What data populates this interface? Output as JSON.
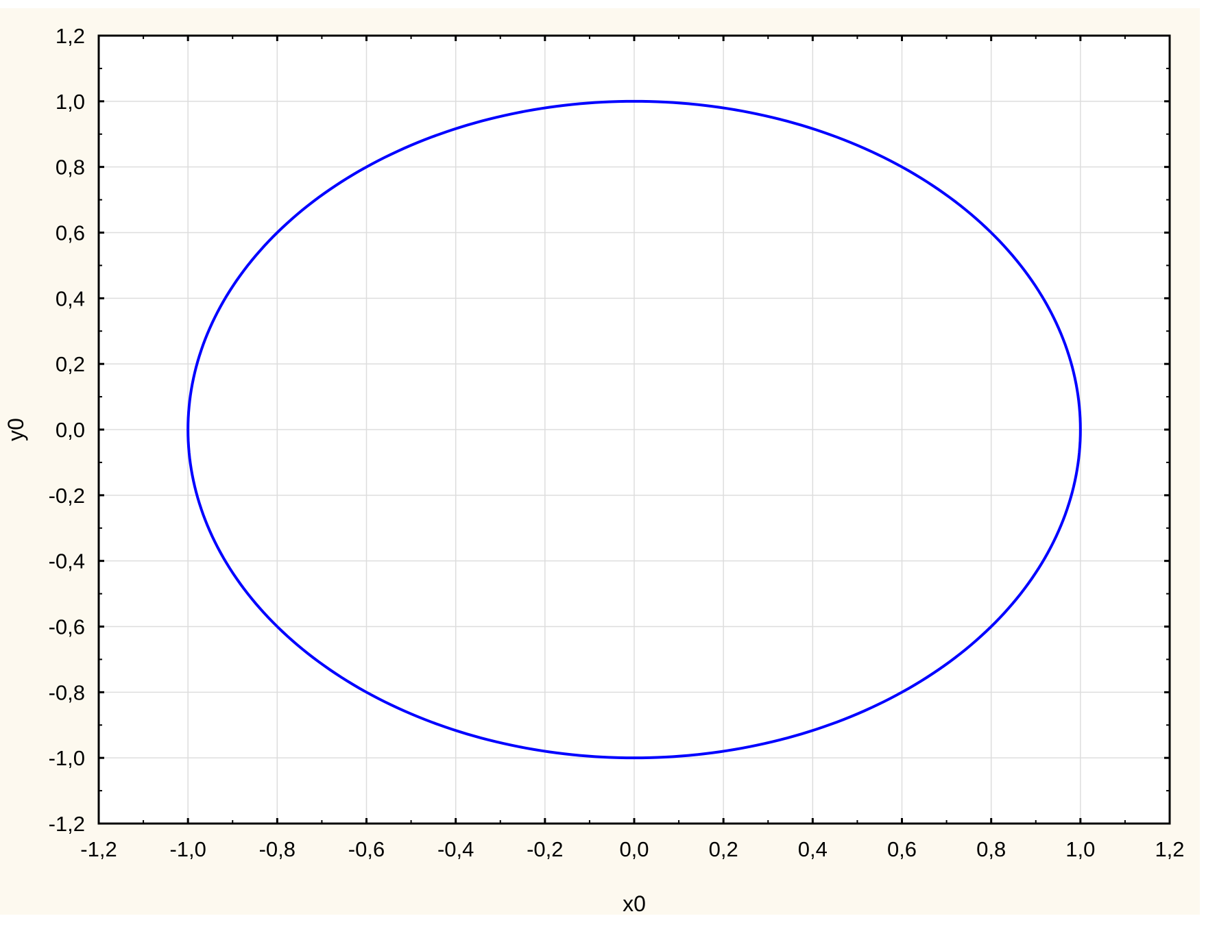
{
  "chart_data": {
    "type": "line",
    "title": "",
    "xlabel": "x0",
    "ylabel": "y0",
    "xlim": [
      -1.2,
      1.2
    ],
    "ylim": [
      -1.2,
      1.2
    ],
    "xticks": [
      "-1,2",
      "-1,0",
      "-0,8",
      "-0,6",
      "-0,4",
      "-0,2",
      "0,0",
      "0,2",
      "0,4",
      "0,6",
      "0,8",
      "1,0",
      "1,2"
    ],
    "yticks": [
      "1,2",
      "1,0",
      "0,8",
      "0,6",
      "0,4",
      "0,2",
      "0,0",
      "-0,2",
      "-0,4",
      "-0,6",
      "-0,8",
      "-1,0",
      "-1,2"
    ],
    "grid": true,
    "series": [
      {
        "shape": "closed curve x0^2 + y0^2 = 1",
        "center": [
          0,
          0
        ],
        "radius_x": 1.0,
        "radius_y": 1.0,
        "color": "#0000ff"
      }
    ],
    "background": "#fdf9ef",
    "plot_background": "#ffffff",
    "grid_color": "#dddddd"
  }
}
